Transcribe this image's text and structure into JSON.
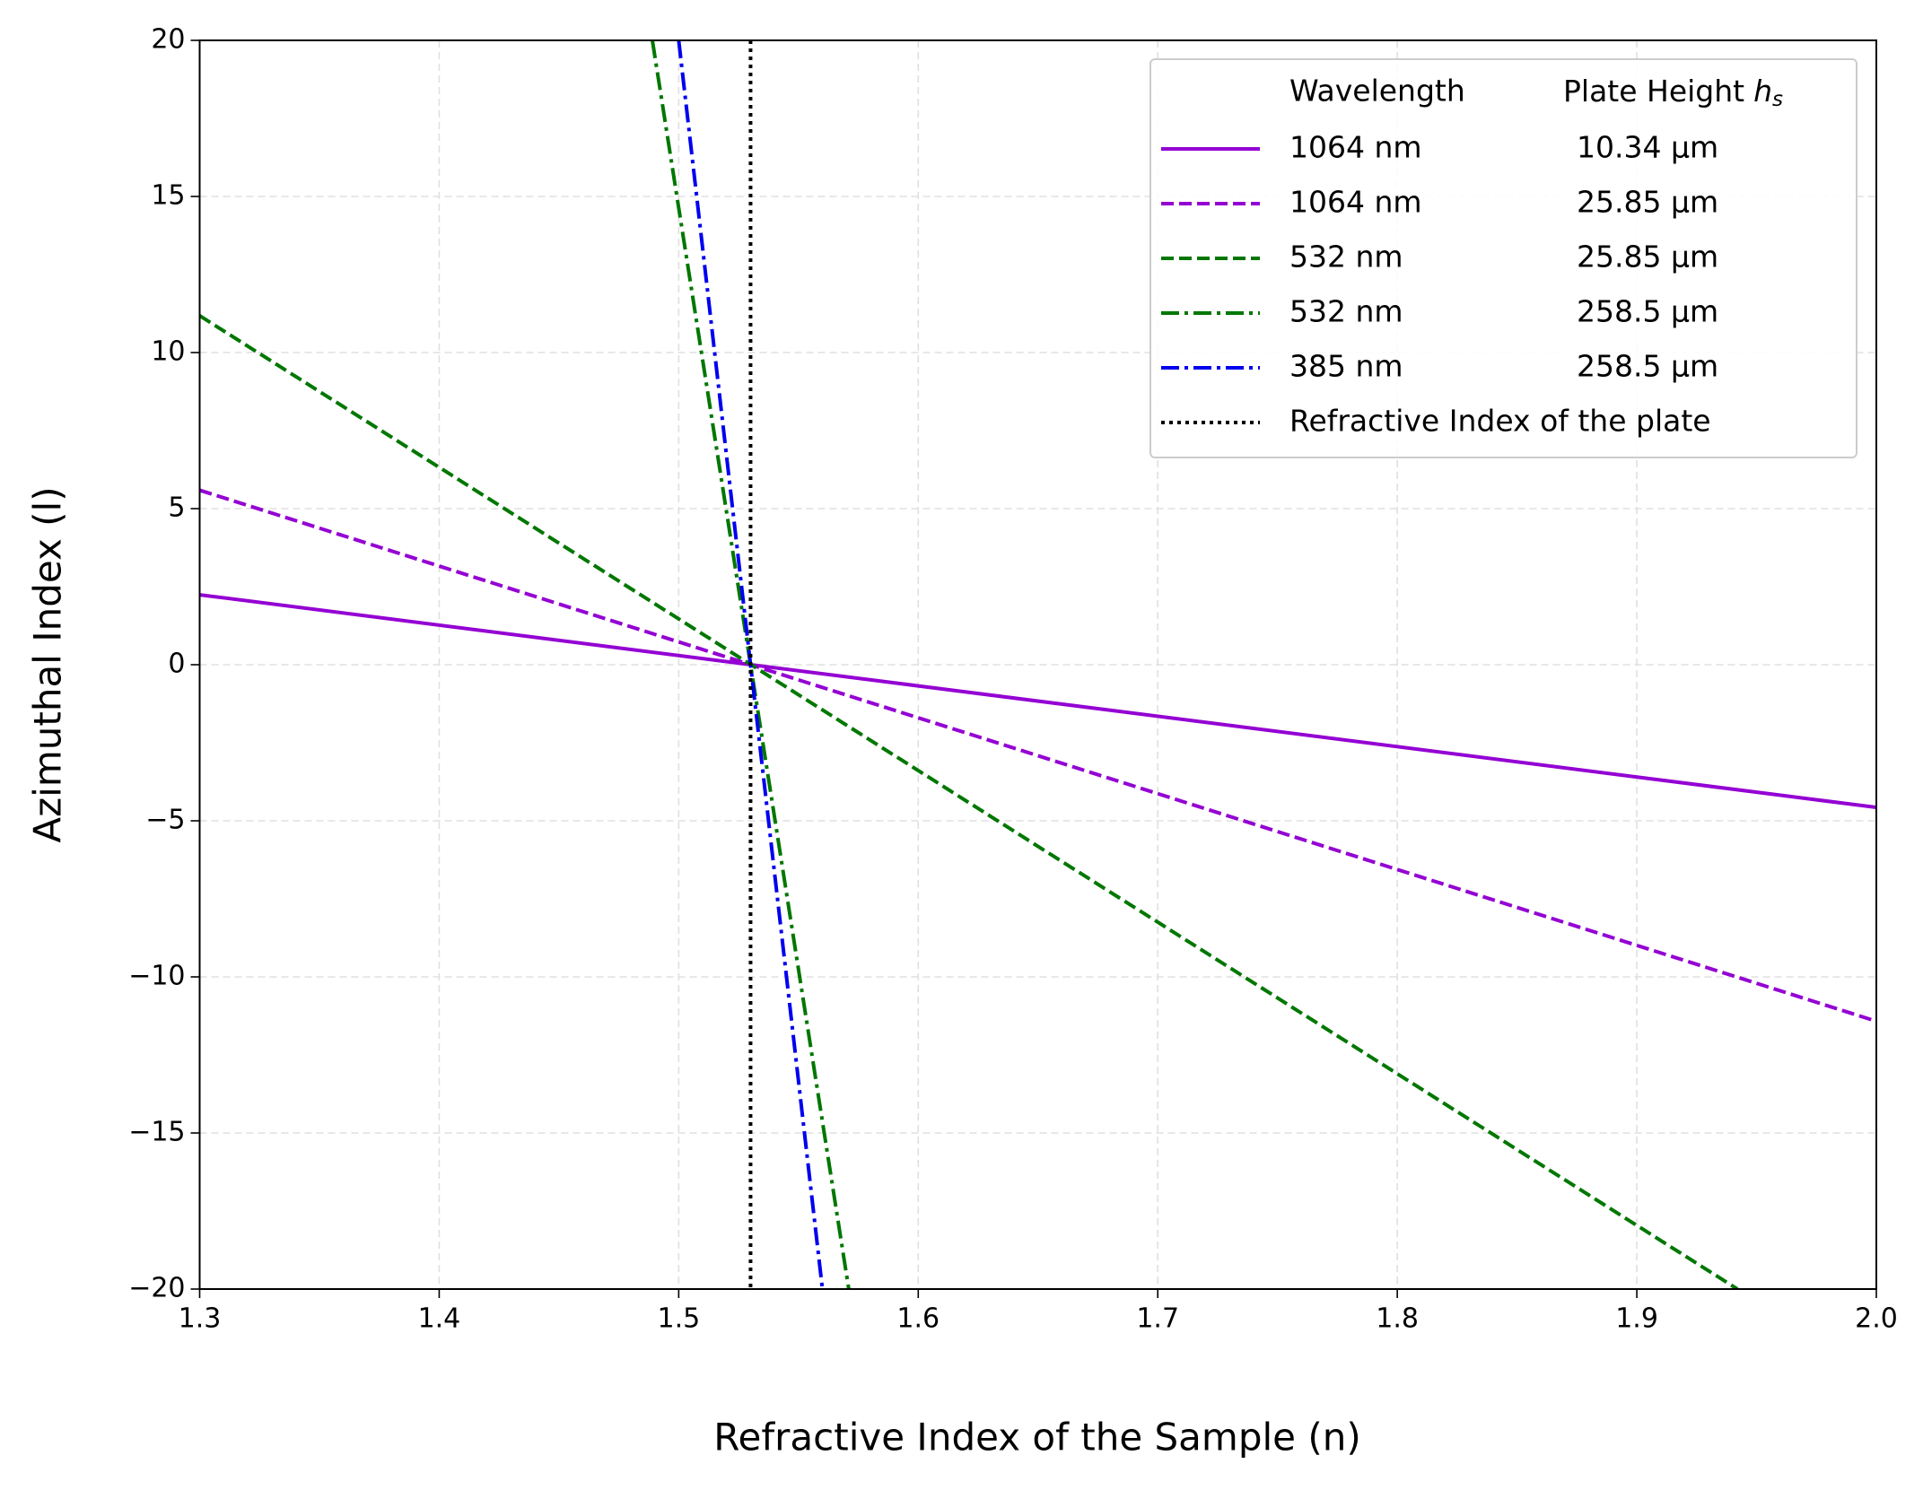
{
  "chart_data": {
    "type": "line",
    "xlabel": "Refractive Index of the Sample (n)",
    "ylabel": "Azimuthal Index (l)",
    "legend_headers": {
      "wavelength": "Wavelength",
      "plate_height": "Plate Height",
      "symbol": "h",
      "subscript": "s"
    },
    "xlim": [
      1.3,
      2.0
    ],
    "ylim": [
      -20,
      20
    ],
    "xticks": [
      1.3,
      1.4,
      1.5,
      1.6,
      1.7,
      1.8,
      1.9,
      {
        "value": 2,
        "label": "2.0"
      }
    ],
    "yticks": [
      {
        "value": -20,
        "label": "−20"
      },
      {
        "value": -15,
        "label": "−15"
      },
      {
        "value": -10,
        "label": "−10"
      },
      {
        "value": -5,
        "label": "−5"
      },
      0,
      5,
      10,
      15,
      20
    ],
    "grid": true,
    "legend": "upper right",
    "series": [
      {
        "name": "1064 nm",
        "plate_height": "10.34 µm",
        "color": "#9400d3",
        "linestyle": "solid",
        "x": [
          1.3,
          2.0
        ],
        "values": [
          2.24,
          -4.57
        ]
      },
      {
        "name": "1064 nm",
        "plate_height": "25.85 µm",
        "color": "#9400d3",
        "linestyle": "dashed",
        "x": [
          1.3,
          2.0
        ],
        "values": [
          5.59,
          -11.42
        ]
      },
      {
        "name": "532 nm",
        "plate_height": "25.85 µm",
        "color": "#007700",
        "linestyle": "dashed",
        "x": [
          1.3,
          1.942
        ],
        "values": [
          11.18,
          -20
        ]
      },
      {
        "name": "532 nm",
        "plate_height": "258.5 µm",
        "color": "#007700",
        "linestyle": "dashdot",
        "x": [
          1.489,
          1.571
        ],
        "values": [
          20,
          -20
        ]
      },
      {
        "name": "385 nm",
        "plate_height": "258.5 µm",
        "color": "#0000ee",
        "linestyle": "dashdot",
        "x": [
          1.5,
          1.56
        ],
        "values": [
          20,
          -20
        ]
      },
      {
        "name": "Refractive Index of the plate",
        "color": "#000000",
        "linestyle": "dotted",
        "x": [
          1.53,
          1.53
        ],
        "values": [
          20,
          -20
        ]
      }
    ]
  }
}
